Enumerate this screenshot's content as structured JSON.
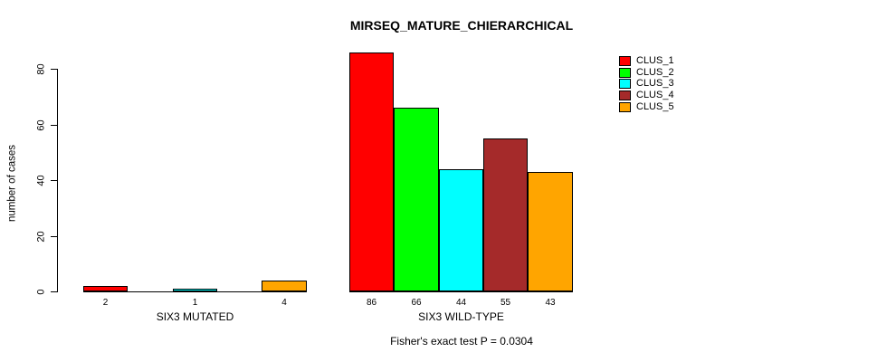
{
  "chart_data": {
    "type": "bar",
    "title": "MIRSEQ_MATURE_CHIERARCHICAL",
    "ylabel": "number of cases",
    "xlabel": "",
    "note": "Fisher's exact test P = 0.0304",
    "ylim": [
      0,
      86
    ],
    "yticks": [
      0,
      20,
      40,
      60,
      80
    ],
    "grid": false,
    "legend_position": "top-right",
    "series": [
      {
        "name": "CLUS_1",
        "color": "#FF0000"
      },
      {
        "name": "CLUS_2",
        "color": "#00FF00"
      },
      {
        "name": "CLUS_3",
        "color": "#00FFFF"
      },
      {
        "name": "CLUS_4",
        "color": "#A52A2A"
      },
      {
        "name": "CLUS_5",
        "color": "#FFA500"
      }
    ],
    "groups": [
      {
        "label": "SIX3 MUTATED",
        "values": [
          2,
          0,
          1,
          0,
          4
        ]
      },
      {
        "label": "SIX3 WILD-TYPE",
        "values": [
          86,
          66,
          44,
          55,
          43
        ]
      }
    ]
  }
}
